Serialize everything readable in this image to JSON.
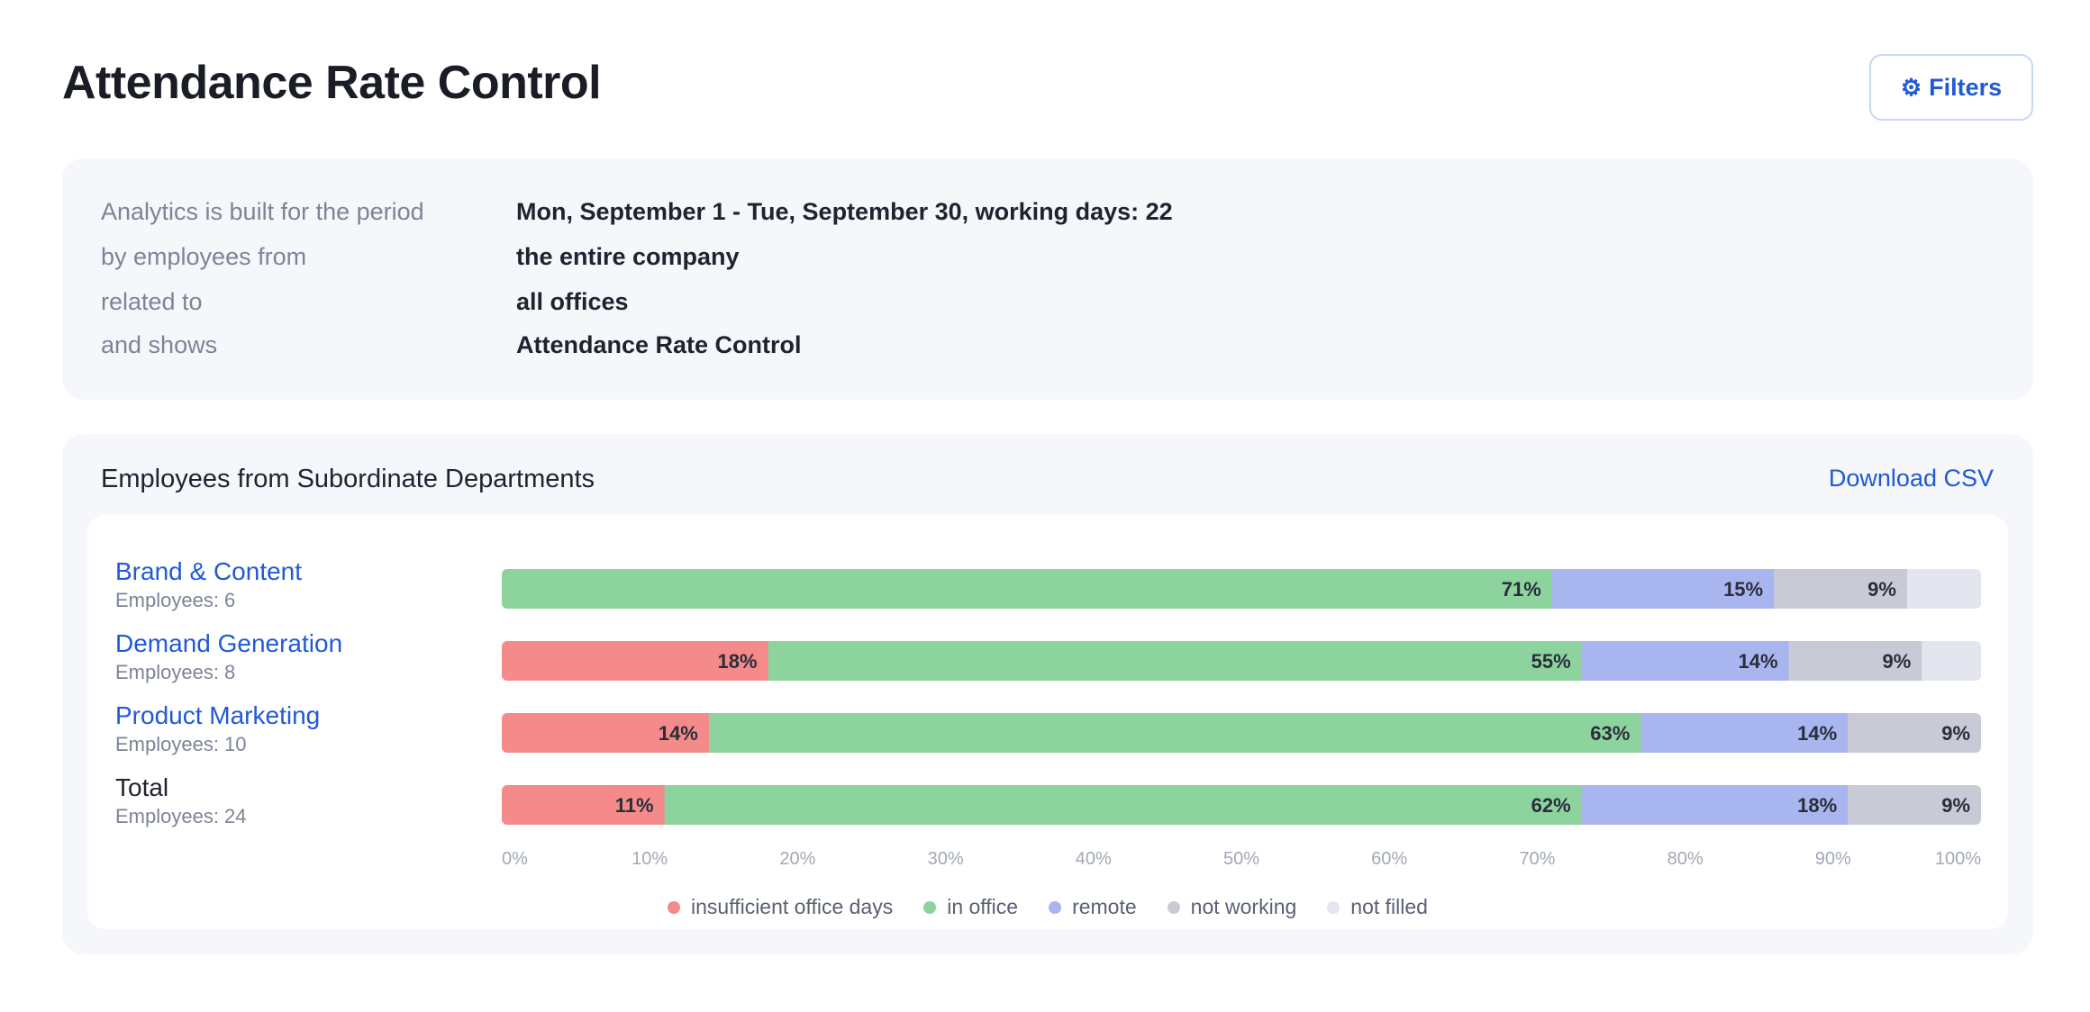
{
  "header": {
    "title": "Attendance Rate Control",
    "filters_icon": "gear-icon",
    "filters_label": "Filters"
  },
  "info": {
    "rows": [
      {
        "label": "Analytics is built for the period",
        "value": "Mon, September 1 - Tue, September 30, working days: 22"
      },
      {
        "label": "by employees from",
        "value": "the entire company"
      },
      {
        "label": "related to",
        "value": "all offices"
      },
      {
        "label": "and shows",
        "value": "Attendance Rate Control"
      }
    ]
  },
  "section": {
    "title": "Employees from Subordinate Departments",
    "download_label": "Download CSV"
  },
  "chart_data": {
    "type": "bar",
    "orientation": "horizontal",
    "stacked": true,
    "categories": [
      "Brand & Content",
      "Demand Generation",
      "Product Marketing",
      "Total"
    ],
    "category_subtitles": [
      "Employees: 6",
      "Employees: 8",
      "Employees: 10",
      "Employees: 24"
    ],
    "series": [
      {
        "name": "insufficient office days",
        "color": "#f48a8a",
        "values": [
          0,
          18,
          14,
          11
        ]
      },
      {
        "name": "in office",
        "color": "#8dd39e",
        "values": [
          71,
          55,
          63,
          62
        ]
      },
      {
        "name": "remote",
        "color": "#a8b5ef",
        "values": [
          15,
          14,
          14,
          18
        ]
      },
      {
        "name": "not working",
        "color": "#c8cbd6",
        "values": [
          9,
          9,
          9,
          9
        ]
      },
      {
        "name": "not filled",
        "color": "#e3e6ef",
        "values": [
          5,
          4,
          0,
          0
        ]
      }
    ],
    "xlim": [
      0,
      100
    ],
    "xticks": [
      "0%",
      "10%",
      "20%",
      "30%",
      "40%",
      "50%",
      "60%",
      "70%",
      "80%",
      "90%",
      "100%"
    ],
    "legend_position": "bottom-center",
    "grid": false
  }
}
